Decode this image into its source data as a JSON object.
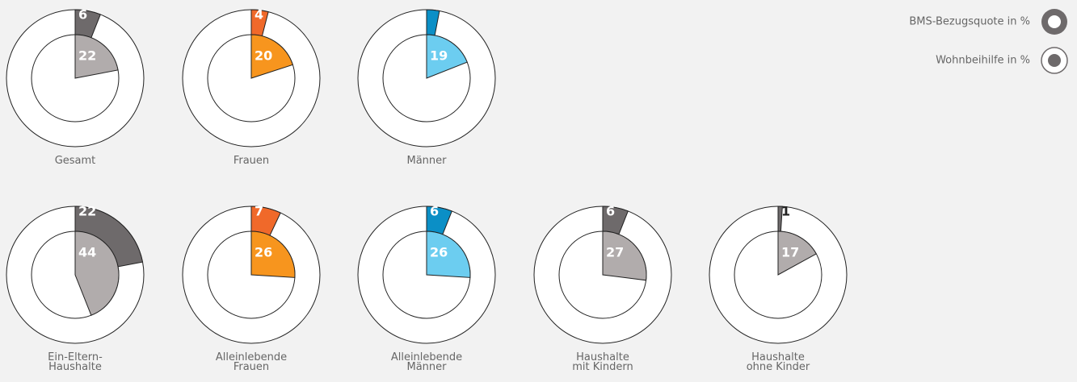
{
  "legend": [
    "BMS-Bezugsquote in %",
    "Wohnbeihilfe in %"
  ],
  "chart_data": [
    {
      "type": "donut",
      "title": "Gesamt",
      "values": [
        6,
        22
      ],
      "value_labels": [
        "6",
        "22"
      ],
      "colors": [
        "#6e6a6b",
        "#b1acac"
      ]
    },
    {
      "type": "donut",
      "title": "Frauen",
      "values": [
        4,
        20
      ],
      "value_labels": [
        "4",
        "20"
      ],
      "colors": [
        "#f0692a",
        "#f7951e"
      ]
    },
    {
      "type": "donut",
      "title": "Männer",
      "values": [
        3,
        19
      ],
      "value_labels": [
        null,
        "19"
      ],
      "colors": [
        "#0b8fc6",
        "#6ccdf0"
      ]
    },
    {
      "type": "donut",
      "title": "Ein-Eltern-\nHaushalte",
      "values": [
        22,
        44
      ],
      "value_labels": [
        "22",
        "44"
      ],
      "colors": [
        "#6e6a6b",
        "#b1acac"
      ]
    },
    {
      "type": "donut",
      "title": "Alleinlebende\nFrauen",
      "values": [
        7,
        26
      ],
      "value_labels": [
        "7",
        "26"
      ],
      "colors": [
        "#f0692a",
        "#f7951e"
      ]
    },
    {
      "type": "donut",
      "title": "Alleinlebende\nMänner",
      "values": [
        6,
        26
      ],
      "value_labels": [
        "6",
        "26"
      ],
      "colors": [
        "#0b8fc6",
        "#6ccdf0"
      ]
    },
    {
      "type": "donut",
      "title": "Haushalte\nmit Kindern",
      "values": [
        6,
        27
      ],
      "value_labels": [
        "6",
        "27"
      ],
      "colors": [
        "#6e6a6b",
        "#b1acac"
      ]
    },
    {
      "type": "donut",
      "title": "Haushalte\nohne Kinder",
      "values": [
        1,
        17
      ],
      "value_labels": [
        "1",
        "17"
      ],
      "colors": [
        "#6e6a6b",
        "#b1acac"
      ]
    }
  ]
}
